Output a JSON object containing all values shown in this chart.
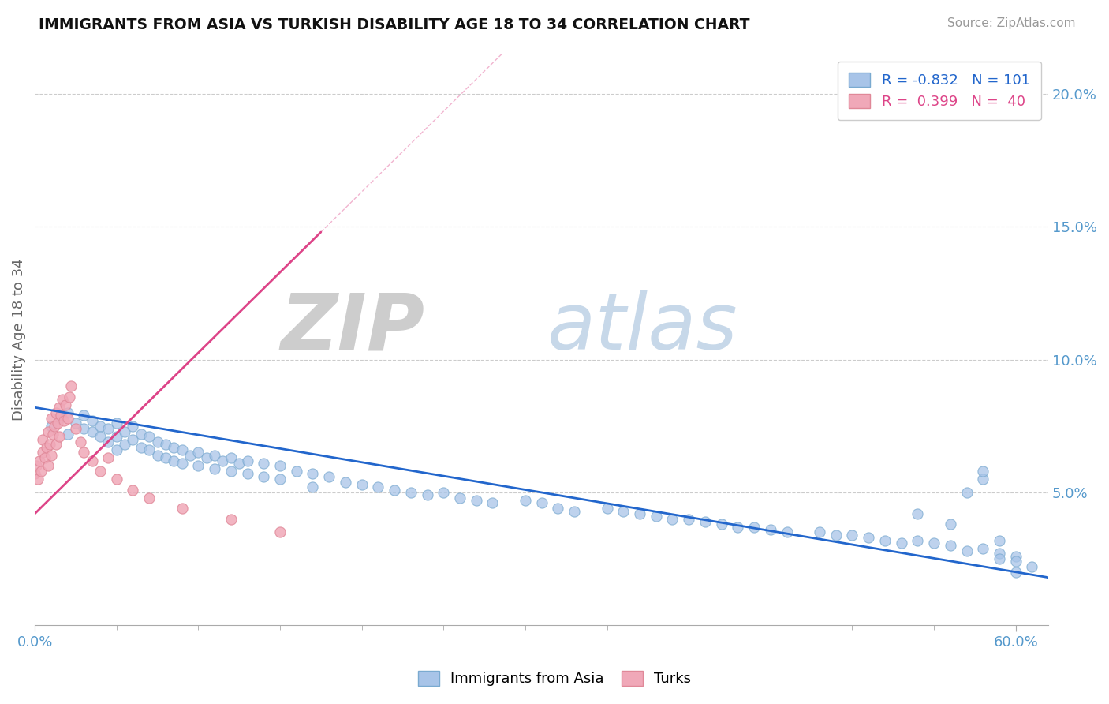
{
  "title": "IMMIGRANTS FROM ASIA VS TURKISH DISABILITY AGE 18 TO 34 CORRELATION CHART",
  "source": "Source: ZipAtlas.com",
  "ylabel": "Disability Age 18 to 34",
  "blue_color": "#a8c4e8",
  "pink_color": "#f0a8b8",
  "blue_edge_color": "#7aaad0",
  "pink_edge_color": "#e08898",
  "blue_line_color": "#2266cc",
  "pink_line_color": "#dd4488",
  "xlim": [
    0.0,
    0.62
  ],
  "ylim": [
    0.0,
    0.215
  ],
  "yticks": [
    0.05,
    0.1,
    0.15,
    0.2
  ],
  "ytick_labels": [
    "5.0%",
    "10.0%",
    "15.0%",
    "20.0%"
  ],
  "blue_line_x": [
    0.0,
    0.62
  ],
  "blue_line_y": [
    0.082,
    0.018
  ],
  "pink_line_x": [
    0.0,
    0.175
  ],
  "pink_line_y": [
    0.042,
    0.148
  ],
  "legend_entries": [
    {
      "label": "R = -0.832   N = 101",
      "color": "#a8c4e8",
      "text_color": "#2266cc"
    },
    {
      "label": "R =  0.399   N =  40",
      "color": "#f0a8b8",
      "text_color": "#dd4488"
    }
  ],
  "bottom_legend": [
    "Immigrants from Asia",
    "Turks"
  ],
  "watermark_zip_color": "#d0d0d0",
  "watermark_atlas_color": "#b0c4de",
  "grid_color": "#cccccc",
  "axis_color": "#aaaaaa",
  "tick_label_color": "#5599cc",
  "blue_x": [
    0.01,
    0.015,
    0.02,
    0.02,
    0.025,
    0.03,
    0.03,
    0.035,
    0.035,
    0.04,
    0.04,
    0.045,
    0.045,
    0.05,
    0.05,
    0.05,
    0.055,
    0.055,
    0.06,
    0.06,
    0.065,
    0.065,
    0.07,
    0.07,
    0.075,
    0.075,
    0.08,
    0.08,
    0.085,
    0.085,
    0.09,
    0.09,
    0.095,
    0.1,
    0.1,
    0.105,
    0.11,
    0.11,
    0.115,
    0.12,
    0.12,
    0.125,
    0.13,
    0.13,
    0.14,
    0.14,
    0.15,
    0.15,
    0.16,
    0.17,
    0.17,
    0.18,
    0.19,
    0.2,
    0.21,
    0.22,
    0.23,
    0.24,
    0.25,
    0.26,
    0.27,
    0.28,
    0.3,
    0.31,
    0.32,
    0.33,
    0.35,
    0.36,
    0.37,
    0.38,
    0.39,
    0.4,
    0.41,
    0.42,
    0.43,
    0.44,
    0.45,
    0.46,
    0.48,
    0.49,
    0.5,
    0.51,
    0.52,
    0.53,
    0.54,
    0.55,
    0.56,
    0.57,
    0.57,
    0.58,
    0.58,
    0.59,
    0.59,
    0.6,
    0.6,
    0.61,
    0.54,
    0.56,
    0.58,
    0.59,
    0.6
  ],
  "blue_y": [
    0.075,
    0.078,
    0.08,
    0.072,
    0.076,
    0.074,
    0.079,
    0.073,
    0.077,
    0.075,
    0.071,
    0.074,
    0.069,
    0.076,
    0.071,
    0.066,
    0.073,
    0.068,
    0.075,
    0.07,
    0.072,
    0.067,
    0.071,
    0.066,
    0.069,
    0.064,
    0.068,
    0.063,
    0.067,
    0.062,
    0.066,
    0.061,
    0.064,
    0.065,
    0.06,
    0.063,
    0.064,
    0.059,
    0.062,
    0.063,
    0.058,
    0.061,
    0.062,
    0.057,
    0.061,
    0.056,
    0.06,
    0.055,
    0.058,
    0.057,
    0.052,
    0.056,
    0.054,
    0.053,
    0.052,
    0.051,
    0.05,
    0.049,
    0.05,
    0.048,
    0.047,
    0.046,
    0.047,
    0.046,
    0.044,
    0.043,
    0.044,
    0.043,
    0.042,
    0.041,
    0.04,
    0.04,
    0.039,
    0.038,
    0.037,
    0.037,
    0.036,
    0.035,
    0.035,
    0.034,
    0.034,
    0.033,
    0.032,
    0.031,
    0.032,
    0.031,
    0.03,
    0.028,
    0.05,
    0.029,
    0.055,
    0.027,
    0.025,
    0.026,
    0.024,
    0.022,
    0.042,
    0.038,
    0.058,
    0.032,
    0.02
  ],
  "pink_x": [
    0.0,
    0.001,
    0.002,
    0.003,
    0.004,
    0.005,
    0.005,
    0.006,
    0.007,
    0.008,
    0.008,
    0.009,
    0.01,
    0.01,
    0.011,
    0.012,
    0.013,
    0.013,
    0.014,
    0.015,
    0.015,
    0.016,
    0.017,
    0.018,
    0.019,
    0.02,
    0.021,
    0.022,
    0.025,
    0.028,
    0.03,
    0.035,
    0.04,
    0.045,
    0.05,
    0.06,
    0.07,
    0.09,
    0.12,
    0.15
  ],
  "pink_y": [
    0.057,
    0.06,
    0.055,
    0.062,
    0.058,
    0.065,
    0.07,
    0.063,
    0.067,
    0.06,
    0.073,
    0.068,
    0.064,
    0.078,
    0.072,
    0.075,
    0.08,
    0.068,
    0.076,
    0.082,
    0.071,
    0.079,
    0.085,
    0.077,
    0.083,
    0.078,
    0.086,
    0.09,
    0.074,
    0.069,
    0.065,
    0.062,
    0.058,
    0.063,
    0.055,
    0.051,
    0.048,
    0.044,
    0.04,
    0.035
  ]
}
